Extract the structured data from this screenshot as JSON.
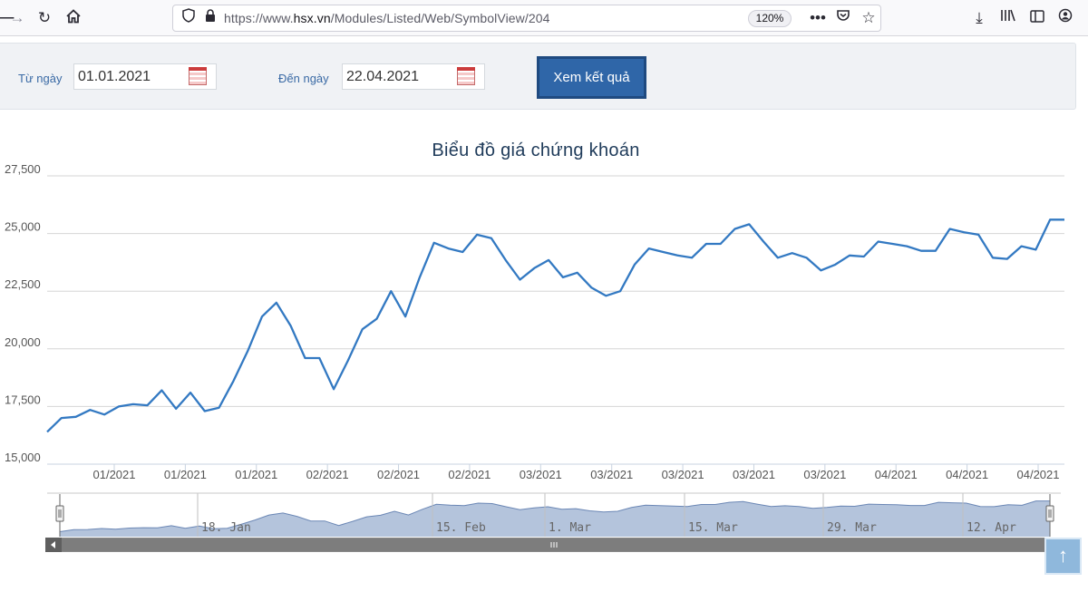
{
  "browser": {
    "url_prefix": "https://www.",
    "url_host": "hsx.vn",
    "url_path": "/Modules/Listed/Web/SymbolView/204",
    "zoom": "120%"
  },
  "filter": {
    "from_label": "Từ ngày",
    "from_value": "01.01.2021",
    "to_label": "Đến ngày",
    "to_value": "22.04.2021",
    "submit_label": "Xem kết quả"
  },
  "chart_data": {
    "type": "line",
    "title": "Biểu đồ giá chứng khoán",
    "ylim": [
      15000,
      27500
    ],
    "yticks": [
      "27,500",
      "25,000",
      "22,500",
      "20,000",
      "17,500",
      "15,000"
    ],
    "xticks": [
      "01/2021",
      "01/2021",
      "01/2021",
      "02/2021",
      "02/2021",
      "02/2021",
      "03/2021",
      "03/2021",
      "03/2021",
      "03/2021",
      "03/2021",
      "04/2021",
      "04/2021",
      "04/2021"
    ],
    "grid": true,
    "series": [
      {
        "values": [
          16400,
          17000,
          17050,
          17350,
          17150,
          17500,
          17600,
          17550,
          18200,
          17400,
          18100,
          17300,
          17450,
          18600,
          19900,
          21400,
          22000,
          21000,
          19600,
          19600,
          18250,
          19500,
          20850,
          21300,
          22500,
          21400,
          23100,
          24600,
          24350,
          24200,
          24950,
          24800,
          23850,
          23000,
          23500,
          23850,
          23100,
          23300,
          22650,
          22300,
          22500,
          23650,
          24350,
          24200,
          24050,
          23950,
          24550,
          24550,
          25200,
          25400,
          24650,
          23950,
          24150,
          23950,
          23400,
          23650,
          24050,
          24000,
          24650,
          24550,
          24450,
          24250,
          24250,
          25200,
          25050,
          24950,
          23950,
          23900,
          24450,
          24300,
          25600,
          25600
        ]
      }
    ]
  },
  "navigator": {
    "labels": [
      "18. Jan",
      "15. Feb",
      "1. Mar",
      "15. Mar",
      "29. Mar",
      "12. Apr"
    ]
  },
  "colors": {
    "line": "#3379c2",
    "navigator_fill": "#b4c4dc",
    "grid": "#d6d6d6"
  }
}
